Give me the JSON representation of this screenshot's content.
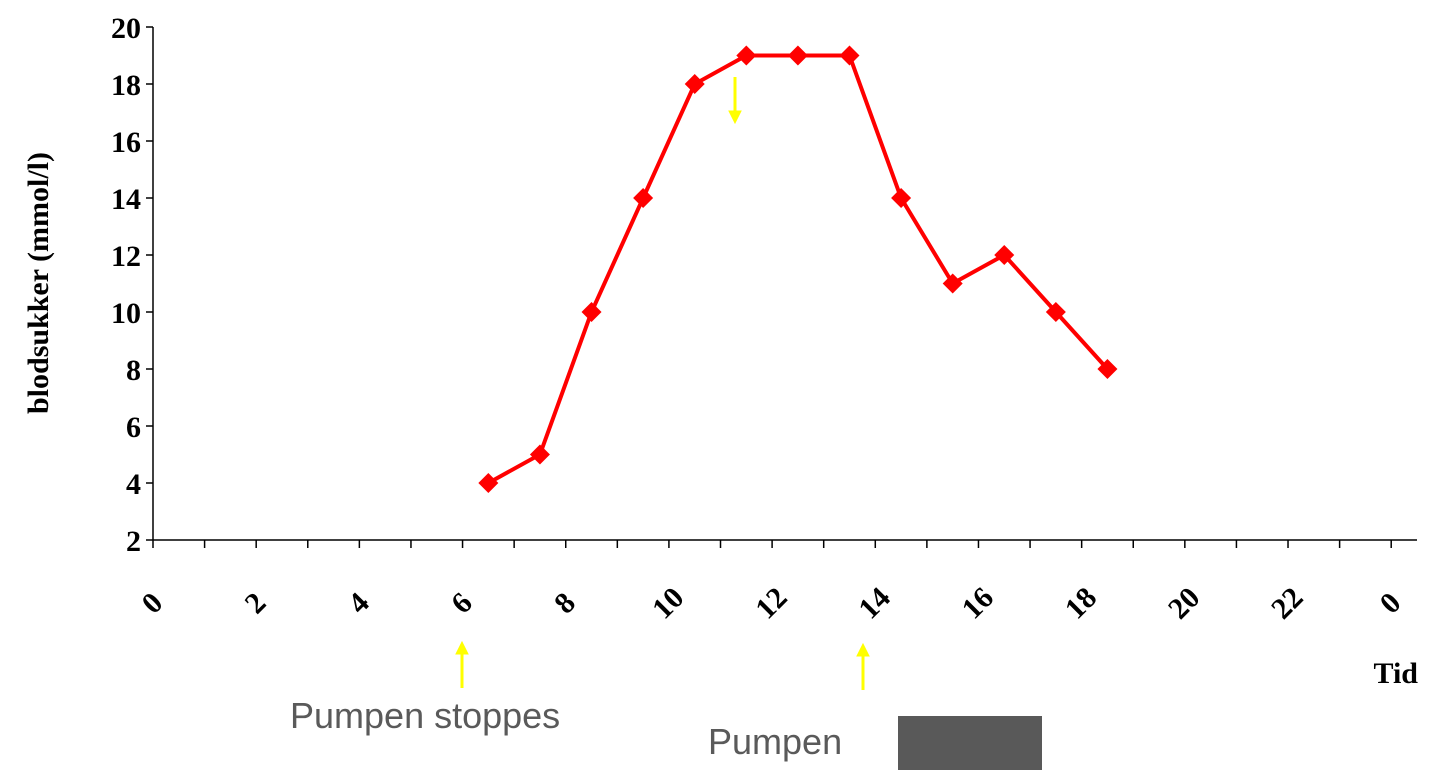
{
  "chart_data": {
    "type": "line",
    "y_label": "blodsukker (mmol/l)",
    "x_label": "Tid",
    "annotations": [
      "Pumpen stoppes",
      "Pumpen"
    ],
    "x": [
      6.5,
      7.5,
      8.5,
      9.5,
      10.5,
      11.5,
      12.5,
      13.5,
      14.5,
      15.5,
      16.5,
      17.5,
      18.5
    ],
    "series": [
      {
        "name": "blodsukker",
        "color": "#ff0000",
        "values": [
          4,
          5,
          10,
          14,
          18,
          19,
          19,
          19,
          14,
          11,
          12,
          10,
          8
        ]
      }
    ],
    "xlim": [
      0,
      24.5
    ],
    "xticks": [
      0,
      2,
      4,
      6,
      8,
      10,
      12,
      14,
      16,
      18,
      20,
      22,
      {
        "value": 24,
        "label": "0"
      }
    ],
    "ylim": [
      2,
      20
    ],
    "yticks": [
      2,
      4,
      6,
      8,
      10,
      12,
      14,
      16,
      18,
      20
    ],
    "grid": false
  }
}
